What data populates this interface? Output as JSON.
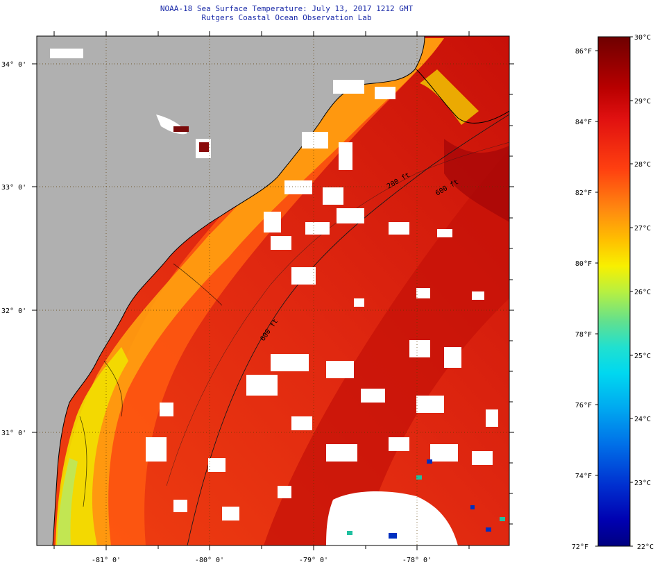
{
  "title": {
    "line1": "NOAA-18 Sea Surface Temperature:  July 13, 2017 1212 GMT",
    "line2": "Rutgers Coastal Ocean Observation Lab"
  },
  "map": {
    "latitude_labels": [
      "34° 0'",
      "33° 0'",
      "32° 0'",
      "31° 0'"
    ],
    "longitude_labels": [
      "-81° 0'",
      "-80° 0'",
      "-79° 0'",
      "-78° 0'"
    ],
    "contour_labels": [
      "200 ft",
      "600 ft"
    ],
    "colors": {
      "land": "#b0b0b0",
      "cloud": "#ffffff",
      "warm_water": "#e02010",
      "cool_water": "#f6d000"
    }
  },
  "colorbar": {
    "fahrenheit_labels": [
      "86°F",
      "84°F",
      "82°F",
      "80°F",
      "78°F",
      "76°F",
      "74°F",
      "72°F"
    ],
    "celsius_labels": [
      "30°C",
      "29°C",
      "28°C",
      "27°C",
      "26°C",
      "25°C",
      "24°C",
      "23°C",
      "22°C"
    ],
    "range_c": [
      22,
      30
    ],
    "range_f": [
      72,
      86
    ]
  }
}
